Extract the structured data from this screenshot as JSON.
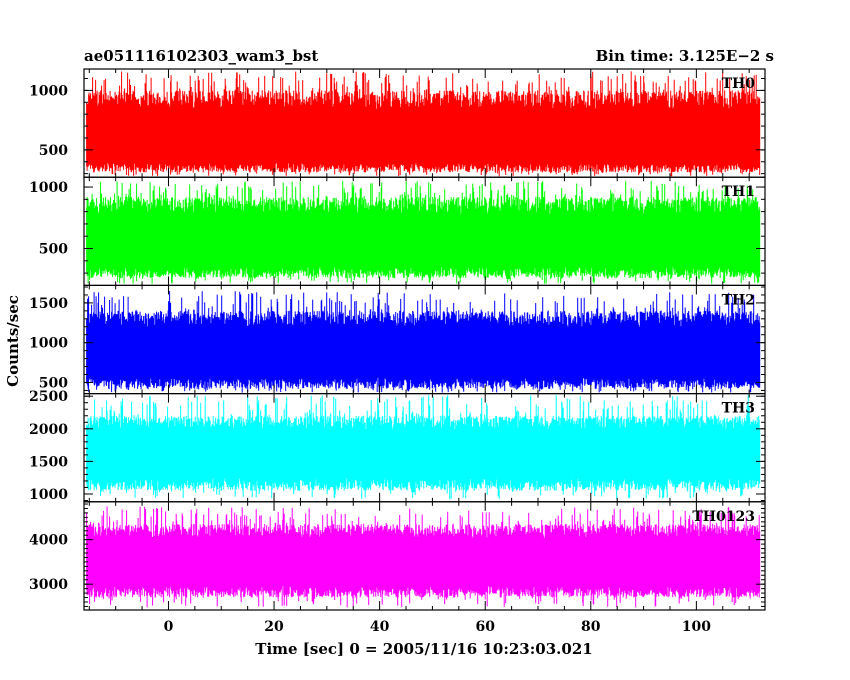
{
  "chart_data": {
    "type": "line",
    "title_left": "ae051116102303_wam3_bst",
    "title_right": "Bin time: 3.125E−2 s",
    "xlabel": "Time [sec] 0 = 2005/11/16 10:23:03.021",
    "ylabel": "Counts/sec",
    "xlim": [
      -16,
      113
    ],
    "x_data_range": [
      -15.5,
      112.0
    ],
    "x_ticks": [
      0,
      20,
      40,
      60,
      80,
      100
    ],
    "x_tick_labels": [
      "0",
      "20",
      "40",
      "60",
      "80",
      "100"
    ],
    "bin_time": 0.03125,
    "grid": false,
    "panels": [
      {
        "name": "TH0",
        "color": "#ff0000",
        "ylim": [
          270,
          1180
        ],
        "mean": 540,
        "low_envelope": 310,
        "high_envelope": 1000,
        "peak_max": 1160,
        "y_ticks": [
          500,
          1000
        ],
        "y_tick_labels": [
          "500",
          "1000"
        ]
      },
      {
        "name": "TH1",
        "color": "#00ff00",
        "ylim": [
          200,
          1080
        ],
        "mean": 520,
        "low_envelope": 260,
        "high_envelope": 920,
        "peak_max": 1050,
        "y_ticks": [
          500,
          1000
        ],
        "y_tick_labels": [
          "500",
          "1000"
        ]
      },
      {
        "name": "TH2",
        "color": "#0000ff",
        "ylim": [
          360,
          1720
        ],
        "mean": 820,
        "low_envelope": 420,
        "high_envelope": 1400,
        "peak_max": 1650,
        "y_ticks": [
          500,
          1000,
          1500
        ],
        "y_tick_labels": [
          "500",
          "1000",
          "1500"
        ]
      },
      {
        "name": "TH3",
        "color": "#00ffff",
        "ylim": [
          880,
          2540
        ],
        "mean": 1600,
        "low_envelope": 1050,
        "high_envelope": 2200,
        "peak_max": 2520,
        "y_ticks": [
          1000,
          1500,
          2000,
          2500
        ],
        "y_tick_labels": [
          "1000",
          "1500",
          "2000",
          "2500"
        ]
      },
      {
        "name": "TH0123",
        "color": "#ff00ff",
        "ylim": [
          2420,
          4850
        ],
        "mean": 3450,
        "low_envelope": 2700,
        "high_envelope": 4350,
        "peak_max": 4750,
        "y_ticks": [
          3000,
          4000
        ],
        "y_tick_labels": [
          "3000",
          "4000"
        ]
      }
    ]
  }
}
